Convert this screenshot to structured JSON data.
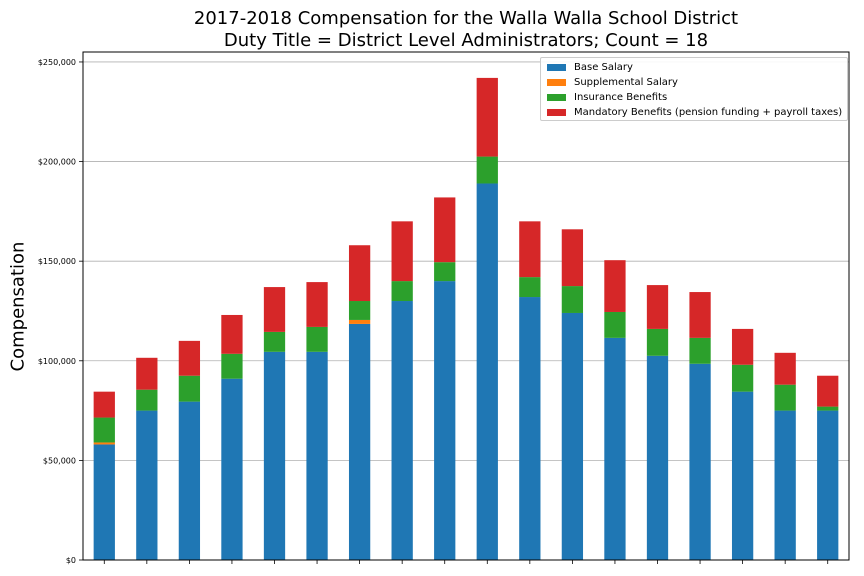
{
  "chart_data": {
    "type": "bar",
    "stacked": true,
    "title": "2017-2018 Compensation for the Walla Walla School District",
    "subtitle": "Duty Title = District Level Administrators; Count = 18",
    "xlabel": "",
    "ylabel": "Compensation",
    "ylim": [
      0,
      255000
    ],
    "yticks": [
      0,
      50000,
      100000,
      150000,
      200000,
      250000
    ],
    "ytick_labels": [
      "$0",
      "$50,000",
      "$100,000",
      "$150,000",
      "$200,000",
      "$250,000"
    ],
    "grid": "horizontal",
    "legend_position": "top-right",
    "categories": [
      "",
      "",
      "",
      "",
      "",
      "",
      "",
      "",
      "",
      "",
      "",
      "",
      "",
      "",
      "",
      "",
      "",
      ""
    ],
    "series": [
      {
        "name": "Base Salary",
        "color": "#1f77b4",
        "values": [
          58000,
          75000,
          79500,
          91000,
          104500,
          104500,
          118500,
          130000,
          140000,
          189000,
          132000,
          124000,
          111500,
          102500,
          98500,
          84500,
          75000,
          75000
        ]
      },
      {
        "name": "Supplemental Salary",
        "color": "#ff7f0e",
        "values": [
          1000,
          0,
          0,
          0,
          0,
          0,
          2000,
          0,
          0,
          0,
          0,
          0,
          0,
          0,
          0,
          0,
          0,
          0
        ]
      },
      {
        "name": "Insurance Benefits",
        "color": "#2ca02c",
        "values": [
          12500,
          10500,
          13000,
          12500,
          10000,
          12500,
          9500,
          10000,
          9500,
          13500,
          10000,
          13500,
          13000,
          13500,
          13000,
          13500,
          13000,
          2000
        ]
      },
      {
        "name": "Mandatory Benefits (pension funding + payroll taxes)",
        "color": "#d62728",
        "values": [
          13000,
          16000,
          17500,
          19500,
          22500,
          22500,
          28000,
          30000,
          32500,
          39500,
          28000,
          28500,
          26000,
          22000,
          23000,
          18000,
          16000,
          15500
        ]
      }
    ]
  }
}
